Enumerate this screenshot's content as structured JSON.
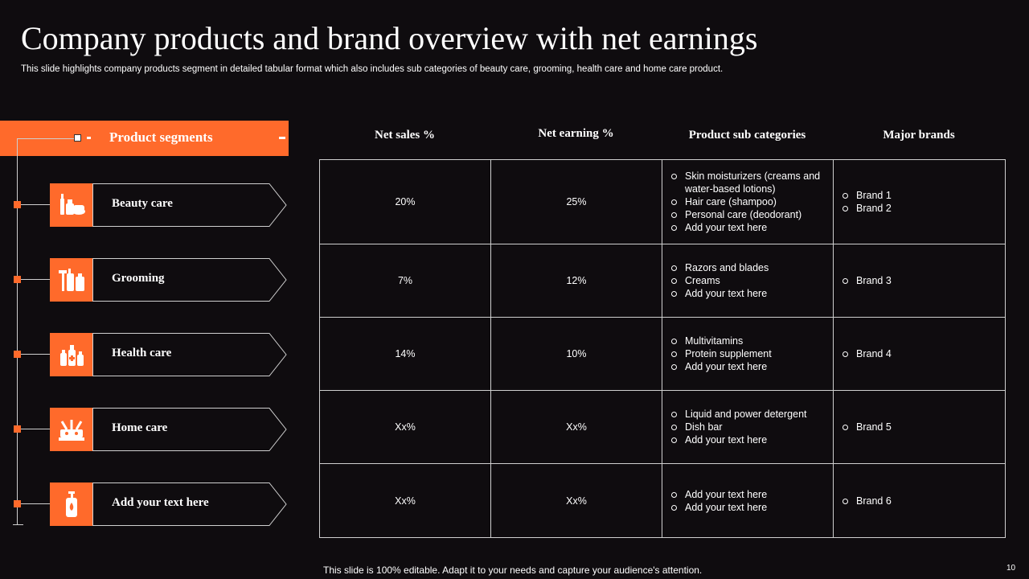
{
  "title": "Company products and brand overview with net earnings",
  "subtitle": "This slide highlights company products segment in detailed tabular format which also includes sub categories of beauty care, grooming, health care and home care product.",
  "segments": {
    "header": "Product segments",
    "items": [
      {
        "label": "Beauty care",
        "icon": "cosmetics-icon"
      },
      {
        "label": "Grooming",
        "icon": "grooming-kit-icon"
      },
      {
        "label": "Health care",
        "icon": "medicine-bottles-icon"
      },
      {
        "label": "Home care",
        "icon": "cleaning-supplies-icon"
      },
      {
        "label": "Add your text here",
        "icon": "lotion-bottle-icon"
      }
    ]
  },
  "table": {
    "headers": [
      "Net sales %",
      "Net earning  %",
      "Product  sub categories",
      "Major brands"
    ],
    "rows": [
      {
        "net_sales": "20%",
        "net_earning": "25%",
        "sub": [
          "Skin moisturizers (creams and water-based lotions)",
          "Hair care (shampoo)",
          "Personal care (deodorant)",
          "Add your text here"
        ],
        "brands": [
          "Brand 1",
          "Brand 2"
        ]
      },
      {
        "net_sales": "7%",
        "net_earning": "12%",
        "sub": [
          "Razors and blades",
          "Creams",
          "Add your text here"
        ],
        "brands": [
          "Brand 3"
        ]
      },
      {
        "net_sales": "14%",
        "net_earning": "10%",
        "sub": [
          "Multivitamins",
          "Protein supplement",
          "Add your text here"
        ],
        "brands": [
          "Brand 4"
        ]
      },
      {
        "net_sales": "Xx%",
        "net_earning": "Xx%",
        "sub": [
          "Liquid and power detergent",
          "Dish bar",
          "Add your text here"
        ],
        "brands": [
          "Brand 5"
        ]
      },
      {
        "net_sales": "Xx%",
        "net_earning": "Xx%",
        "sub": [
          "Add your text here",
          "Add your text here"
        ],
        "brands": [
          "Brand 6"
        ]
      }
    ]
  },
  "footer": "This slide is 100% editable. Adapt it to your needs and capture your audience's attention.",
  "page_number": "10",
  "colors": {
    "accent": "#ff6a2b",
    "background": "#0f0c0f",
    "line": "#cfcfcf"
  }
}
